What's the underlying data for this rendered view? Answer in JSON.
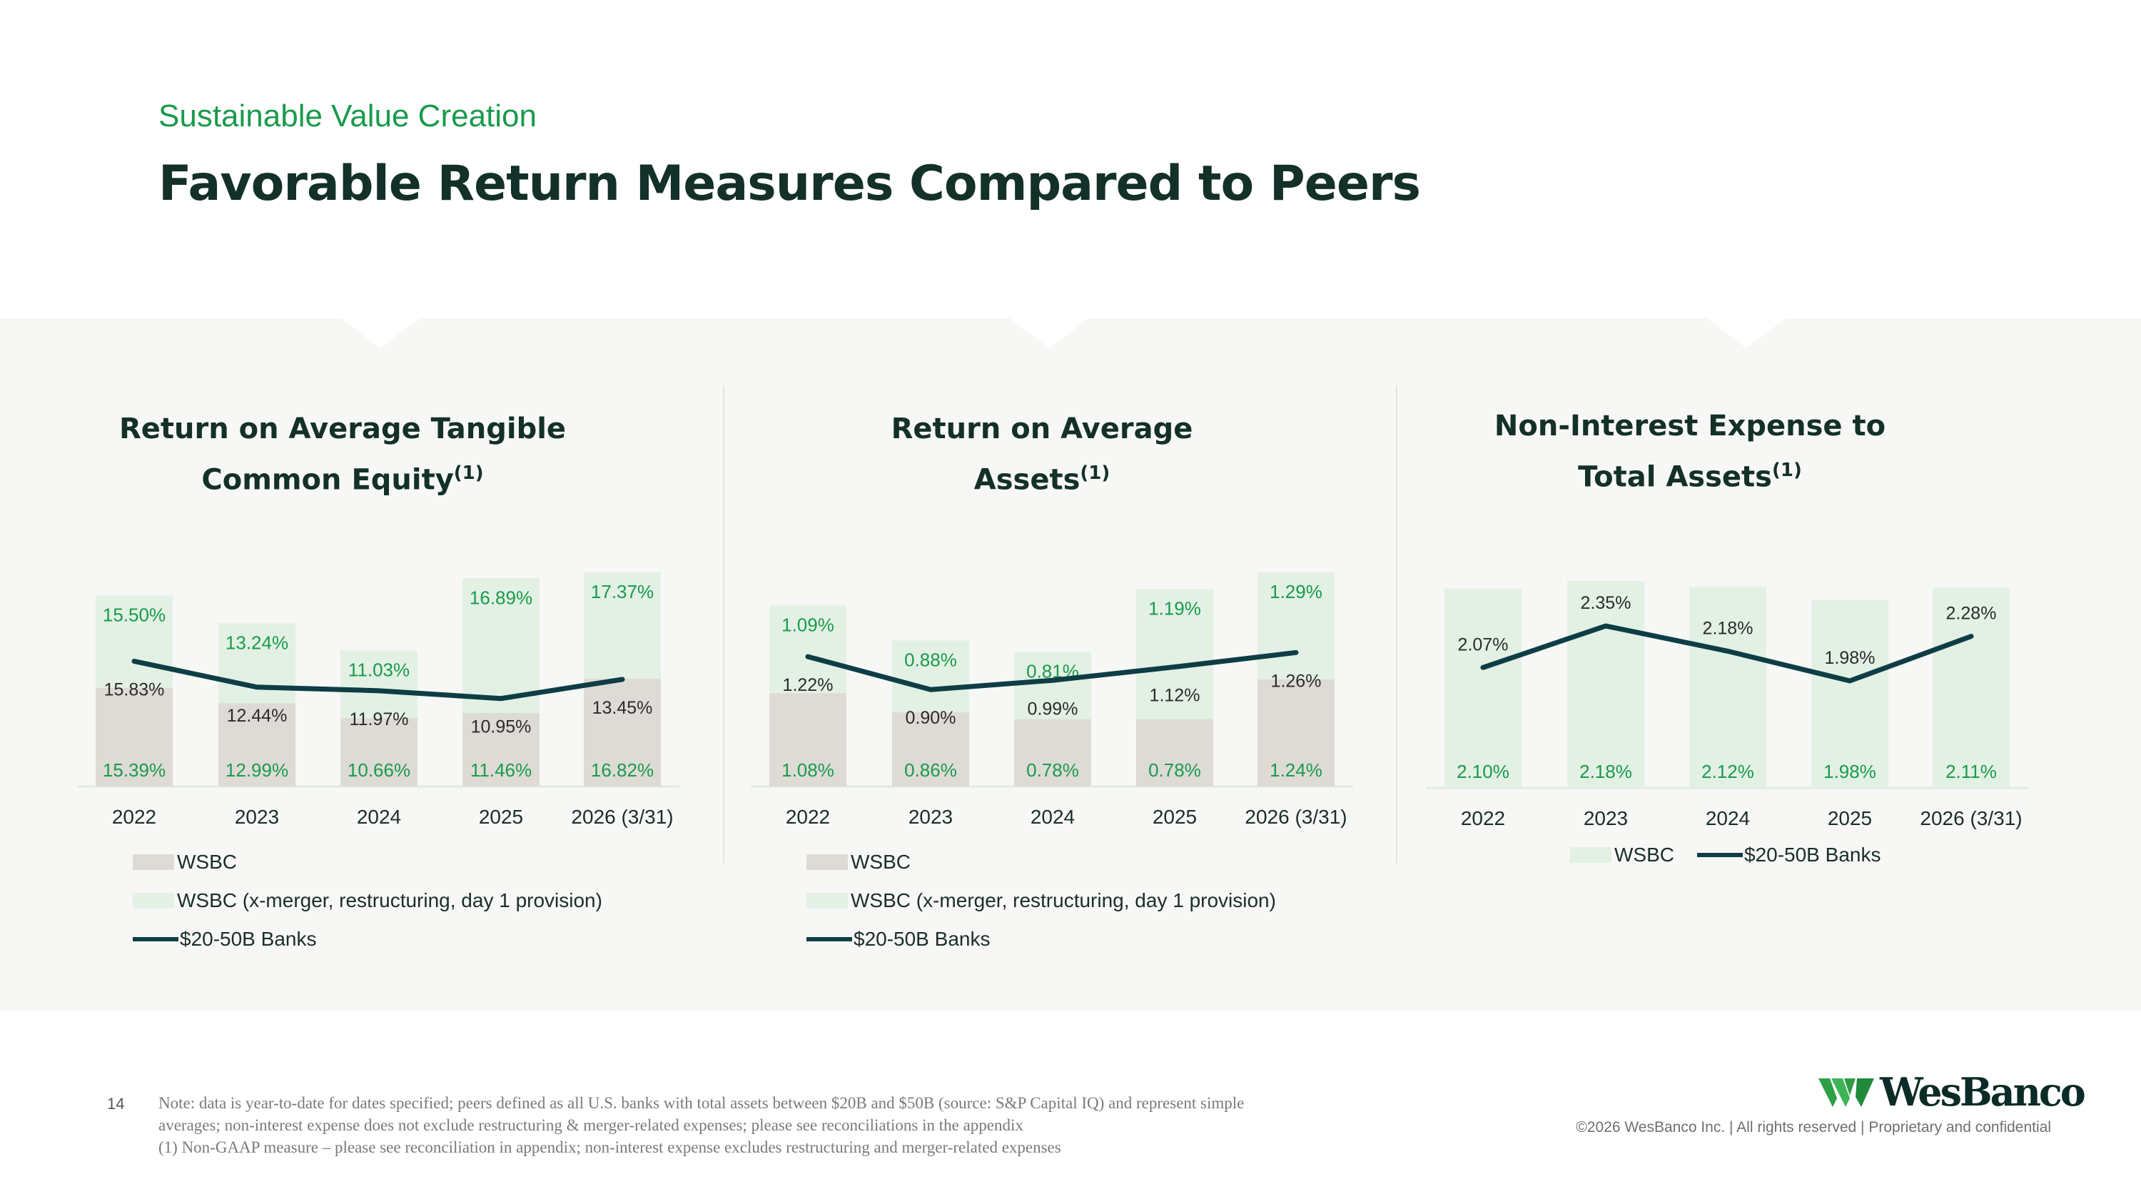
{
  "header": {
    "subtitle": "Sustainable Value Creation",
    "title": "Favorable Return Measures Compared to Peers"
  },
  "colors": {
    "wsbc": "#dedbd6",
    "wsbc_adj": "#e2f1e4",
    "peer_line": "#0e3d45",
    "green_text": "#1a9a4c",
    "dark_text": "#2b2b2b"
  },
  "chart_data": [
    {
      "type": "bar",
      "title": "Return on Average Tangible Common Equity",
      "title_line1": "Return on Average Tangible",
      "title_line2": "Common Equity",
      "title_sup": "(1)",
      "categories": [
        "2022",
        "2023",
        "2024",
        "2025",
        "2026 (3/31)"
      ],
      "series": [
        {
          "name": "WSBC",
          "values": [
            15.39,
            12.99,
            10.66,
            11.46,
            16.82
          ],
          "labels": [
            "15.39%",
            "12.99%",
            "10.66%",
            "11.46%",
            "16.82%"
          ]
        },
        {
          "name": "WSBC (x-merger, restructuring, day 1 provision)",
          "values": [
            15.5,
            13.24,
            11.03,
            16.89,
            17.37
          ],
          "labels": [
            "15.50%",
            "13.24%",
            "11.03%",
            "16.89%",
            "17.37%"
          ]
        },
        {
          "name": "$20-50B Banks",
          "values": [
            15.83,
            12.44,
            11.97,
            10.95,
            13.45
          ],
          "labels": [
            "15.83%",
            "12.44%",
            "11.97%",
            "10.95%",
            "13.45%"
          ]
        }
      ],
      "legend": [
        "WSBC",
        "WSBC (x-merger, restructuring, day 1 provision)",
        "$20-50B Banks"
      ]
    },
    {
      "type": "bar",
      "title": "Return on Average Assets",
      "title_line1": "Return on Average",
      "title_line2": "Assets",
      "title_sup": "(1)",
      "categories": [
        "2022",
        "2023",
        "2024",
        "2025",
        "2026 (3/31)"
      ],
      "series": [
        {
          "name": "WSBC",
          "values": [
            1.08,
            0.86,
            0.78,
            0.78,
            1.24
          ],
          "labels": [
            "1.08%",
            "0.86%",
            "0.78%",
            "0.78%",
            "1.24%"
          ]
        },
        {
          "name": "WSBC (x-merger, restructuring, day 1 provision)",
          "values": [
            1.09,
            0.88,
            0.81,
            1.19,
            1.29
          ],
          "labels": [
            "1.09%",
            "0.88%",
            "0.81%",
            "1.19%",
            "1.29%"
          ]
        },
        {
          "name": "$20-50B Banks",
          "values": [
            1.22,
            0.9,
            0.99,
            1.12,
            1.26
          ],
          "labels": [
            "1.22%",
            "0.90%",
            "0.99%",
            "1.12%",
            "1.26%"
          ]
        }
      ],
      "legend": [
        "WSBC",
        "WSBC (x-merger, restructuring, day 1 provision)",
        "$20-50B Banks"
      ]
    },
    {
      "type": "bar",
      "title": "Non-Interest Expense to Total Assets",
      "title_line1": "Non-Interest Expense to",
      "title_line2": "Total Assets",
      "title_sup": "(1)",
      "categories": [
        "2022",
        "2023",
        "2024",
        "2025",
        "2026 (3/31)"
      ],
      "series": [
        {
          "name": "WSBC",
          "values": [
            2.1,
            2.18,
            2.12,
            1.98,
            2.11
          ],
          "labels": [
            "2.10%",
            "2.18%",
            "2.12%",
            "1.98%",
            "2.11%"
          ]
        },
        {
          "name": "$20-50B Banks",
          "values": [
            2.07,
            2.35,
            2.18,
            1.98,
            2.28
          ],
          "labels": [
            "2.07%",
            "2.35%",
            "2.18%",
            "1.98%",
            "2.28%"
          ]
        }
      ],
      "legend": [
        "WSBC",
        "$20-50B Banks"
      ]
    }
  ],
  "footer": {
    "page_number": "14",
    "note_line1": "Note: data is year-to-date for dates specified; peers defined as all U.S. banks with total assets between $20B and $50B (source: S&P Capital IQ) and represent simple",
    "note_line2": "averages; non-interest expense does not exclude restructuring & merger-related expenses; please see reconciliations in the appendix",
    "note_line3": "(1) Non-GAAP measure – please see reconciliation in appendix; non-interest expense excludes restructuring and merger-related expenses",
    "logo_text": "WesBanco",
    "copyright": "©2026 WesBanco Inc.  |  All rights reserved  |  Proprietary and confidential"
  }
}
